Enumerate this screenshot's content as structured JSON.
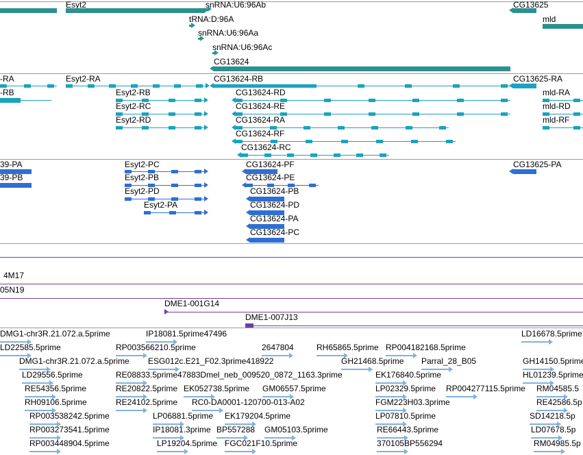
{
  "colors": {
    "gene": "#2f8f8f",
    "transcript": "#1aa3bf",
    "protein": "#2f6fd1",
    "clone": "#6b3fa0",
    "est": "#7fb2e0",
    "separator": "#9a9a9a"
  },
  "tracks": {
    "genes": [
      "Esyt2",
      "snRNA:U6:96Ab",
      "CG13625",
      "tRNA:D:96A",
      "mld",
      "snRNA:U6:96Aa",
      "snRNA:U6:96Ac",
      "CG13624"
    ],
    "transcripts": [
      "-RA",
      "-RB",
      "Esyt2-RA",
      "Esyt2-RB",
      "Esyt2-RC",
      "Esyt2-RD",
      "CG13624-RB",
      "CG13624-RD",
      "CG13624-RE",
      "CG13624-RA",
      "CG13624-RF",
      "CG13624-RC",
      "CG13625-RA",
      "mld-RA",
      "mld-RD",
      "mld-RF"
    ],
    "proteins": [
      "39-PA",
      "39-PB",
      "Esyt2-PC",
      "Esyt2-PB",
      "Esyt2-PD",
      "Esyt2-PA",
      "CG13624-PF",
      "CG13624-PE",
      "CG13624-PB",
      "CG13624-PD",
      "CG13624-PA",
      "CG13624-PC",
      "CG13625-PA"
    ],
    "clones": [
      "4M17",
      "05N19",
      "DME1-001G14",
      "DME1-007J13"
    ],
    "ests": [
      "DMG1-chr3R.21.072.a.5prime",
      "IP18081.5prime47496",
      "LD16678.5prime",
      "LD22585.5prime",
      "RP003566210.5prime",
      "2647804",
      "RH65865.5prime",
      "RP004182168.5prime",
      "DMG1-chr3R.21.072.a.5prime",
      "ESG012c.E21_F02.3prime418922",
      "GH21468.5prime",
      "Parral_28_B05",
      "GH14150.5prime",
      "LD29556.5prime",
      "RE08833.5prime47883Dmel_neb_009520_0872_1163.3prime",
      "EK176840.5prime",
      "HL01239.5prime",
      "RE54356.5prime",
      "RE20822.5prime",
      "EK052738.5prime",
      "GM06557.5prime",
      "LP02329.5prime",
      "RP004277115.5prime",
      "RM04585.5",
      "RH09106.5prime",
      "RE24102.5prime",
      "RC0-DA0001-120700-013-A02",
      "FGM223H03.3prime",
      "RE42586.5p",
      "RP003538242.5prime",
      "LP06881.5prime",
      "EK179204.5prime",
      "LP07810.5prime",
      "SD14218.5p",
      "RP003273541.5prime",
      "IP18081.3prime",
      "BP557288",
      "GM05103.5prime",
      "RE66443.5prime",
      "LD07678.5p",
      "RP003448904.5prime",
      "LP19204.5prime",
      "FGC021F10.5prime",
      "370105BP556294",
      "RM04985.5p"
    ]
  }
}
